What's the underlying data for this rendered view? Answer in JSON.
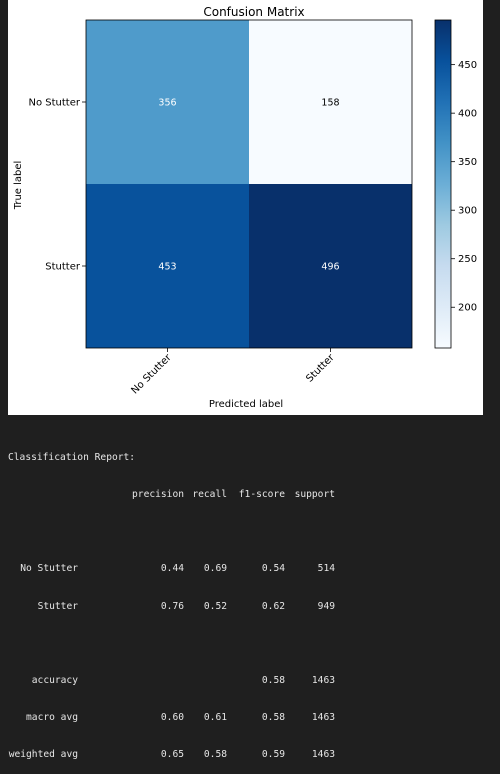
{
  "chart_data": {
    "type": "heatmap",
    "title": "Confusion Matrix",
    "xlabel": "Predicted label",
    "ylabel": "True label",
    "x_tick_labels": [
      "No Stutter",
      "Stutter"
    ],
    "y_tick_labels": [
      "No Stutter",
      "Stutter"
    ],
    "values": [
      [
        356,
        158
      ],
      [
        453,
        496
      ]
    ],
    "colormap": "Blues",
    "color_range": [
      158,
      496
    ],
    "colorbar_ticks": [
      200,
      250,
      300,
      350,
      400,
      450
    ],
    "grid": false
  },
  "report": {
    "title": "Classification Report:",
    "headers": [
      "precision",
      "recall",
      "f1-score",
      "support"
    ],
    "rows": [
      {
        "label": "No Stutter",
        "precision": "0.44",
        "recall": "0.69",
        "f1": "0.54",
        "support": "514"
      },
      {
        "label": "Stutter",
        "precision": "0.76",
        "recall": "0.52",
        "f1": "0.62",
        "support": "949"
      }
    ],
    "accuracy": {
      "label": "accuracy",
      "f1": "0.58",
      "support": "1463"
    },
    "averages": [
      {
        "label": "macro avg",
        "precision": "0.60",
        "recall": "0.61",
        "f1": "0.58",
        "support": "1463"
      },
      {
        "label": "weighted avg",
        "precision": "0.65",
        "recall": "0.58",
        "f1": "0.59",
        "support": "1463"
      }
    ]
  }
}
